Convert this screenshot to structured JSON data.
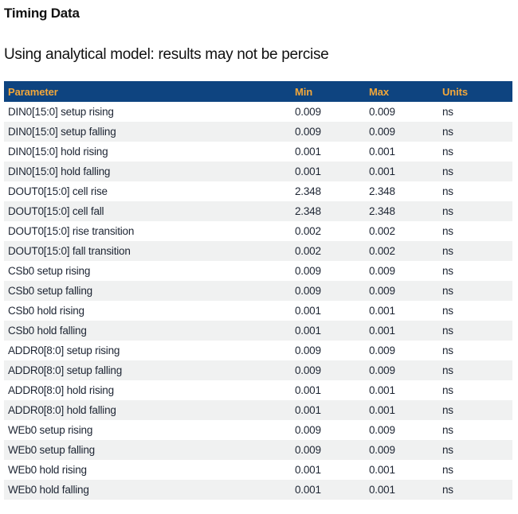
{
  "page": {
    "title": "Timing Data",
    "subtitle": "Using analytical model: results may not be percise"
  },
  "colors": {
    "header_bg": "#0e4480",
    "header_text": "#f2a73a",
    "row_stripe": "#f0f1f1",
    "row_text": "#1d2533"
  },
  "table": {
    "columns": [
      "Parameter",
      "Min",
      "Max",
      "Units"
    ],
    "rows": [
      {
        "param": "DIN0[15:0] setup rising",
        "min": "0.009",
        "max": "0.009",
        "units": "ns"
      },
      {
        "param": "DIN0[15:0] setup falling",
        "min": "0.009",
        "max": "0.009",
        "units": "ns"
      },
      {
        "param": "DIN0[15:0] hold rising",
        "min": "0.001",
        "max": "0.001",
        "units": "ns"
      },
      {
        "param": "DIN0[15:0] hold falling",
        "min": "0.001",
        "max": "0.001",
        "units": "ns"
      },
      {
        "param": "DOUT0[15:0] cell rise",
        "min": "2.348",
        "max": "2.348",
        "units": "ns"
      },
      {
        "param": "DOUT0[15:0] cell fall",
        "min": "2.348",
        "max": "2.348",
        "units": "ns"
      },
      {
        "param": "DOUT0[15:0] rise transition",
        "min": "0.002",
        "max": "0.002",
        "units": "ns"
      },
      {
        "param": "DOUT0[15:0] fall transition",
        "min": "0.002",
        "max": "0.002",
        "units": "ns"
      },
      {
        "param": "CSb0 setup rising",
        "min": "0.009",
        "max": "0.009",
        "units": "ns"
      },
      {
        "param": "CSb0 setup falling",
        "min": "0.009",
        "max": "0.009",
        "units": "ns"
      },
      {
        "param": "CSb0 hold rising",
        "min": "0.001",
        "max": "0.001",
        "units": "ns"
      },
      {
        "param": "CSb0 hold falling",
        "min": "0.001",
        "max": "0.001",
        "units": "ns"
      },
      {
        "param": "ADDR0[8:0] setup rising",
        "min": "0.009",
        "max": "0.009",
        "units": "ns"
      },
      {
        "param": "ADDR0[8:0] setup falling",
        "min": "0.009",
        "max": "0.009",
        "units": "ns"
      },
      {
        "param": "ADDR0[8:0] hold rising",
        "min": "0.001",
        "max": "0.001",
        "units": "ns"
      },
      {
        "param": "ADDR0[8:0] hold falling",
        "min": "0.001",
        "max": "0.001",
        "units": "ns"
      },
      {
        "param": "WEb0 setup rising",
        "min": "0.009",
        "max": "0.009",
        "units": "ns"
      },
      {
        "param": "WEb0 setup falling",
        "min": "0.009",
        "max": "0.009",
        "units": "ns"
      },
      {
        "param": "WEb0 hold rising",
        "min": "0.001",
        "max": "0.001",
        "units": "ns"
      },
      {
        "param": "WEb0 hold falling",
        "min": "0.001",
        "max": "0.001",
        "units": "ns"
      }
    ]
  }
}
